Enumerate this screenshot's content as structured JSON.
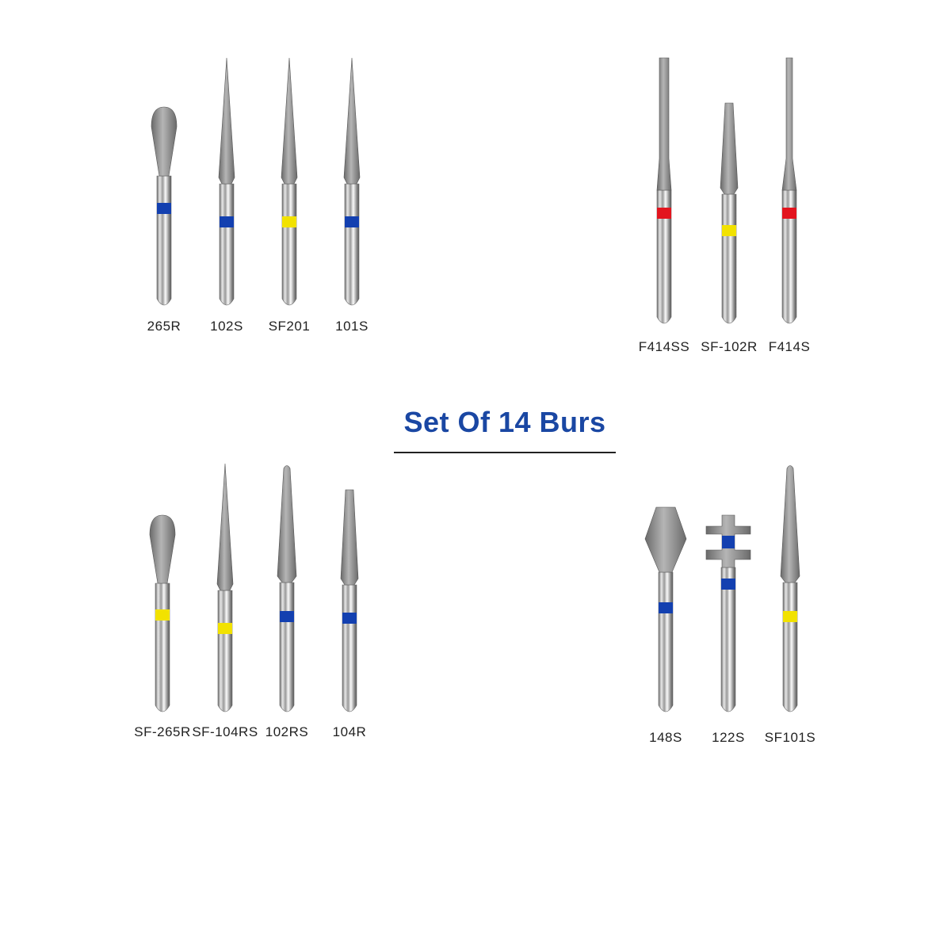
{
  "title": "Set Of 14 Burs",
  "colors": {
    "title": "#1a47a3",
    "blue": "#1340b0",
    "yellow": "#f2e200",
    "red": "#e3141e"
  },
  "groups": [
    {
      "burs": [
        {
          "label": "265R",
          "head": "pear",
          "band": "blue"
        },
        {
          "label": "102S",
          "head": "needle",
          "band": "blue"
        },
        {
          "label": "SF201",
          "head": "needle",
          "band": "yellow"
        },
        {
          "label": "101S",
          "head": "needle",
          "band": "blue"
        }
      ]
    },
    {
      "burs": [
        {
          "label": "F414SS",
          "head": "long-cylinder",
          "band": "red"
        },
        {
          "label": "SF-102R",
          "head": "taper",
          "band": "yellow"
        },
        {
          "label": "F414S",
          "head": "long-cylinder-thin",
          "band": "red"
        }
      ]
    },
    {
      "burs": [
        {
          "label": "SF-265R",
          "head": "pear",
          "band": "yellow"
        },
        {
          "label": "SF-104RS",
          "head": "needle",
          "band": "yellow"
        },
        {
          "label": "102RS",
          "head": "cone-round",
          "band": "blue"
        },
        {
          "label": "104R",
          "head": "taper",
          "band": "blue"
        }
      ]
    },
    {
      "burs": [
        {
          "label": "148S",
          "head": "barrel",
          "band": "blue"
        },
        {
          "label": "122S",
          "head": "wheel",
          "band": "blue"
        },
        {
          "label": "SF101S",
          "head": "cone-round",
          "band": "yellow"
        }
      ]
    }
  ]
}
